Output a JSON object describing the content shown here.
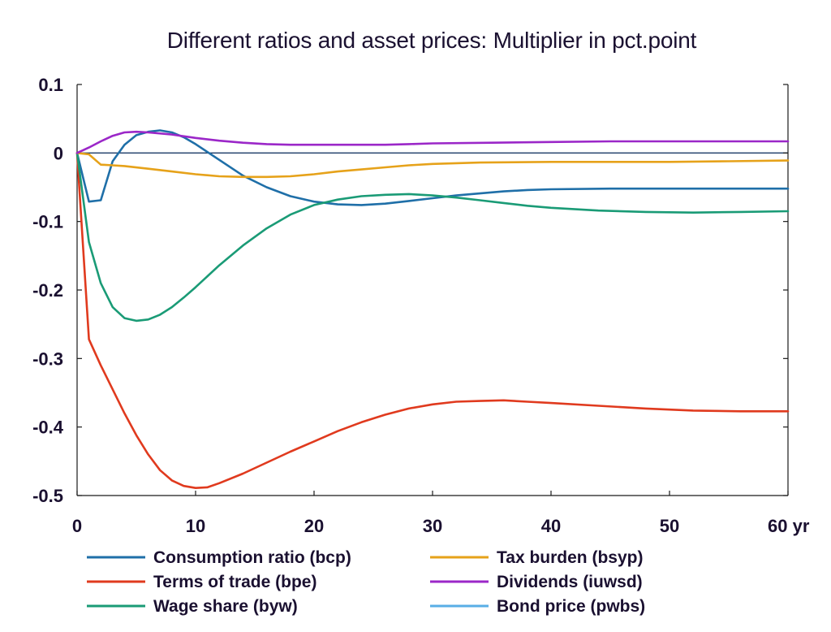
{
  "chart_data": {
    "type": "line",
    "title": "Different ratios and asset prices: Multiplier in pct.point",
    "xlabel": "",
    "ylabel": "",
    "xlim": [
      0,
      60
    ],
    "ylim": [
      -0.5,
      0.1
    ],
    "x_ticks": [
      "0",
      "10",
      "20",
      "30",
      "40",
      "50",
      "60 yr"
    ],
    "y_ticks": [
      "0.1",
      "0",
      "-0.1",
      "-0.2",
      "-0.3",
      "-0.4",
      "-0.5"
    ],
    "grid": false,
    "legend_position": "bottom",
    "series": [
      {
        "name": "Consumption ratio (bcp)",
        "color": "#1f6fa8",
        "points": [
          [
            0,
            0
          ],
          [
            1,
            -0.071
          ],
          [
            2,
            -0.069
          ],
          [
            3,
            -0.012
          ],
          [
            4,
            0.012
          ],
          [
            5,
            0.026
          ],
          [
            6,
            0.031
          ],
          [
            7,
            0.033
          ],
          [
            8,
            0.03
          ],
          [
            9,
            0.023
          ],
          [
            10,
            0.013
          ],
          [
            12,
            -0.01
          ],
          [
            14,
            -0.033
          ],
          [
            16,
            -0.05
          ],
          [
            18,
            -0.063
          ],
          [
            20,
            -0.071
          ],
          [
            22,
            -0.075
          ],
          [
            24,
            -0.076
          ],
          [
            26,
            -0.074
          ],
          [
            28,
            -0.07
          ],
          [
            30,
            -0.066
          ],
          [
            32,
            -0.062
          ],
          [
            34,
            -0.059
          ],
          [
            36,
            -0.056
          ],
          [
            38,
            -0.054
          ],
          [
            40,
            -0.053
          ],
          [
            45,
            -0.052
          ],
          [
            50,
            -0.052
          ],
          [
            55,
            -0.052
          ],
          [
            60,
            -0.052
          ]
        ]
      },
      {
        "name": "Terms of trade (bpe)",
        "color": "#e03a1e",
        "points": [
          [
            0,
            0
          ],
          [
            1,
            -0.272
          ],
          [
            2,
            -0.31
          ],
          [
            3,
            -0.345
          ],
          [
            4,
            -0.38
          ],
          [
            5,
            -0.412
          ],
          [
            6,
            -0.44
          ],
          [
            7,
            -0.463
          ],
          [
            8,
            -0.478
          ],
          [
            9,
            -0.486
          ],
          [
            10,
            -0.489
          ],
          [
            11,
            -0.488
          ],
          [
            12,
            -0.482
          ],
          [
            14,
            -0.468
          ],
          [
            16,
            -0.452
          ],
          [
            18,
            -0.436
          ],
          [
            20,
            -0.421
          ],
          [
            22,
            -0.406
          ],
          [
            24,
            -0.393
          ],
          [
            26,
            -0.382
          ],
          [
            28,
            -0.373
          ],
          [
            30,
            -0.367
          ],
          [
            32,
            -0.363
          ],
          [
            34,
            -0.362
          ],
          [
            36,
            -0.361
          ],
          [
            38,
            -0.363
          ],
          [
            40,
            -0.365
          ],
          [
            44,
            -0.369
          ],
          [
            48,
            -0.373
          ],
          [
            52,
            -0.376
          ],
          [
            56,
            -0.377
          ],
          [
            60,
            -0.377
          ]
        ]
      },
      {
        "name": "Wage share (byw)",
        "color": "#1a9b76",
        "points": [
          [
            0,
            0
          ],
          [
            1,
            -0.13
          ],
          [
            2,
            -0.19
          ],
          [
            3,
            -0.225
          ],
          [
            4,
            -0.241
          ],
          [
            5,
            -0.245
          ],
          [
            6,
            -0.243
          ],
          [
            7,
            -0.236
          ],
          [
            8,
            -0.225
          ],
          [
            9,
            -0.211
          ],
          [
            10,
            -0.196
          ],
          [
            12,
            -0.164
          ],
          [
            14,
            -0.135
          ],
          [
            16,
            -0.11
          ],
          [
            18,
            -0.09
          ],
          [
            20,
            -0.076
          ],
          [
            22,
            -0.068
          ],
          [
            24,
            -0.063
          ],
          [
            26,
            -0.061
          ],
          [
            28,
            -0.06
          ],
          [
            30,
            -0.062
          ],
          [
            32,
            -0.065
          ],
          [
            34,
            -0.069
          ],
          [
            36,
            -0.073
          ],
          [
            38,
            -0.077
          ],
          [
            40,
            -0.08
          ],
          [
            44,
            -0.084
          ],
          [
            48,
            -0.086
          ],
          [
            52,
            -0.087
          ],
          [
            56,
            -0.086
          ],
          [
            60,
            -0.085
          ]
        ]
      },
      {
        "name": "Tax burden (bsyp)",
        "color": "#e6a21a",
        "points": [
          [
            0,
            0
          ],
          [
            1,
            -0.002
          ],
          [
            2,
            -0.017
          ],
          [
            3,
            -0.018
          ],
          [
            4,
            -0.019
          ],
          [
            6,
            -0.023
          ],
          [
            8,
            -0.027
          ],
          [
            10,
            -0.031
          ],
          [
            12,
            -0.034
          ],
          [
            14,
            -0.035
          ],
          [
            16,
            -0.035
          ],
          [
            18,
            -0.034
          ],
          [
            20,
            -0.031
          ],
          [
            22,
            -0.027
          ],
          [
            24,
            -0.024
          ],
          [
            26,
            -0.021
          ],
          [
            28,
            -0.018
          ],
          [
            30,
            -0.016
          ],
          [
            34,
            -0.014
          ],
          [
            40,
            -0.013
          ],
          [
            45,
            -0.013
          ],
          [
            50,
            -0.013
          ],
          [
            55,
            -0.012
          ],
          [
            60,
            -0.011
          ]
        ]
      },
      {
        "name": "Dividends (iuwsd)",
        "color": "#9b27c8",
        "points": [
          [
            0,
            0
          ],
          [
            1,
            0.008
          ],
          [
            2,
            0.017
          ],
          [
            3,
            0.025
          ],
          [
            4,
            0.03
          ],
          [
            5,
            0.031
          ],
          [
            6,
            0.03
          ],
          [
            8,
            0.027
          ],
          [
            10,
            0.022
          ],
          [
            12,
            0.018
          ],
          [
            14,
            0.015
          ],
          [
            16,
            0.013
          ],
          [
            18,
            0.012
          ],
          [
            20,
            0.012
          ],
          [
            22,
            0.012
          ],
          [
            24,
            0.012
          ],
          [
            26,
            0.012
          ],
          [
            28,
            0.013
          ],
          [
            30,
            0.014
          ],
          [
            35,
            0.015
          ],
          [
            40,
            0.016
          ],
          [
            45,
            0.017
          ],
          [
            50,
            0.017
          ],
          [
            55,
            0.017
          ],
          [
            60,
            0.017
          ]
        ]
      },
      {
        "name": "Bond price (pwbs)",
        "color": "#58aee6",
        "points": []
      }
    ]
  }
}
